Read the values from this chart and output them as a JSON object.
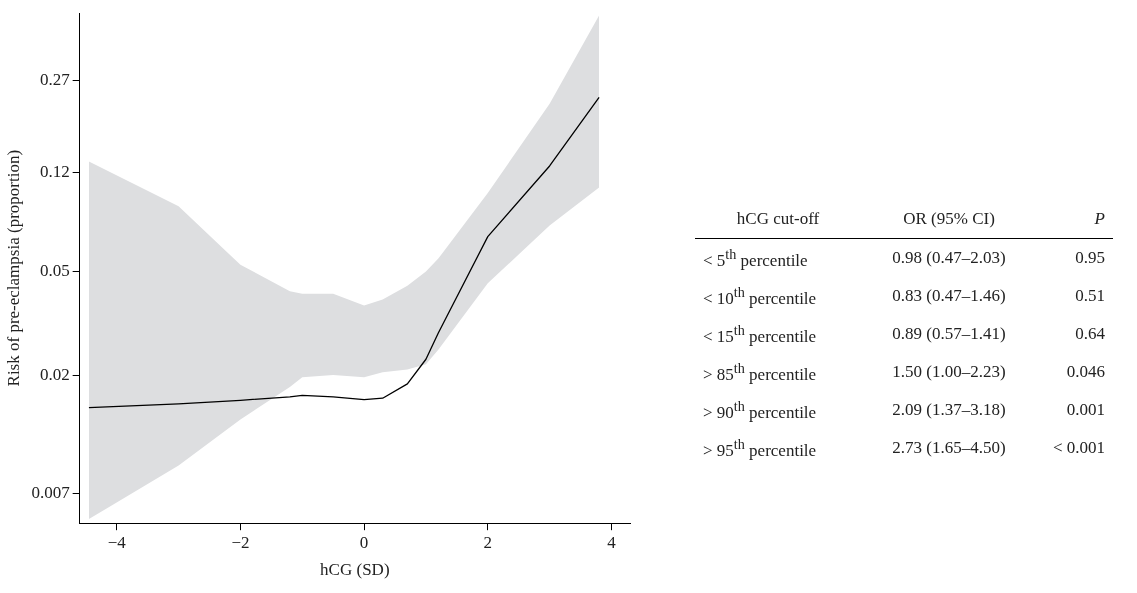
{
  "chart_data": [
    {
      "type": "line",
      "xlabel": "hCG (SD)",
      "ylabel": "Risk of pre-eclampsia (proportion)",
      "log": "y",
      "xlim": [
        -4.6,
        4.3
      ],
      "xticks": [
        {
          "value": -4,
          "label": "−4"
        },
        {
          "value": -2,
          "label": "−2"
        },
        0,
        2,
        4
      ],
      "ylim": [
        0.0054,
        0.49
      ],
      "yticks": [
        0.007,
        0.02,
        0.05,
        0.12,
        0.27
      ],
      "series": [
        {
          "color": "#000000",
          "x": [
            -4.45,
            -3,
            -2,
            -1.2,
            -1,
            -0.5,
            0,
            0.3,
            0.7,
            1,
            1.2,
            2,
            3,
            3.8
          ],
          "values": [
            0.015,
            0.0155,
            0.016,
            0.0165,
            0.0167,
            0.0165,
            0.0161,
            0.0163,
            0.0185,
            0.023,
            0.029,
            0.068,
            0.127,
            0.233
          ],
          "upper": [
            0.132,
            0.089,
            0.053,
            0.042,
            0.041,
            0.041,
            0.037,
            0.039,
            0.044,
            0.05,
            0.056,
            0.1,
            0.22,
            0.48
          ],
          "lower": [
            0.0056,
            0.009,
            0.0135,
            0.018,
            0.0196,
            0.02,
            0.0196,
            0.0205,
            0.021,
            0.022,
            0.025,
            0.045,
            0.075,
            0.105
          ]
        }
      ]
    },
    {
      "type": "other",
      "annotations": [
        "hCG cut-off",
        "OR (95% CI)",
        "P",
        "< 5$^{th}$ percentile",
        "0.98 (0.47–2.03)",
        "0.95",
        "< 10$^{th}$ percentile",
        "0.83 (0.47–1.46)",
        "0.51",
        "< 15$^{th}$ percentile",
        "0.89 (0.57–1.41)",
        "0.64",
        "> 85$^{th}$ percentile",
        "1.50 (1.00–2.23)",
        "0.046",
        "> 90$^{th}$ percentile",
        "2.09 (1.37–3.18)",
        "0.001",
        "> 95$^{th}$ percentile",
        "2.73 (1.65–4.50)",
        "< 0.001"
      ]
    }
  ]
}
